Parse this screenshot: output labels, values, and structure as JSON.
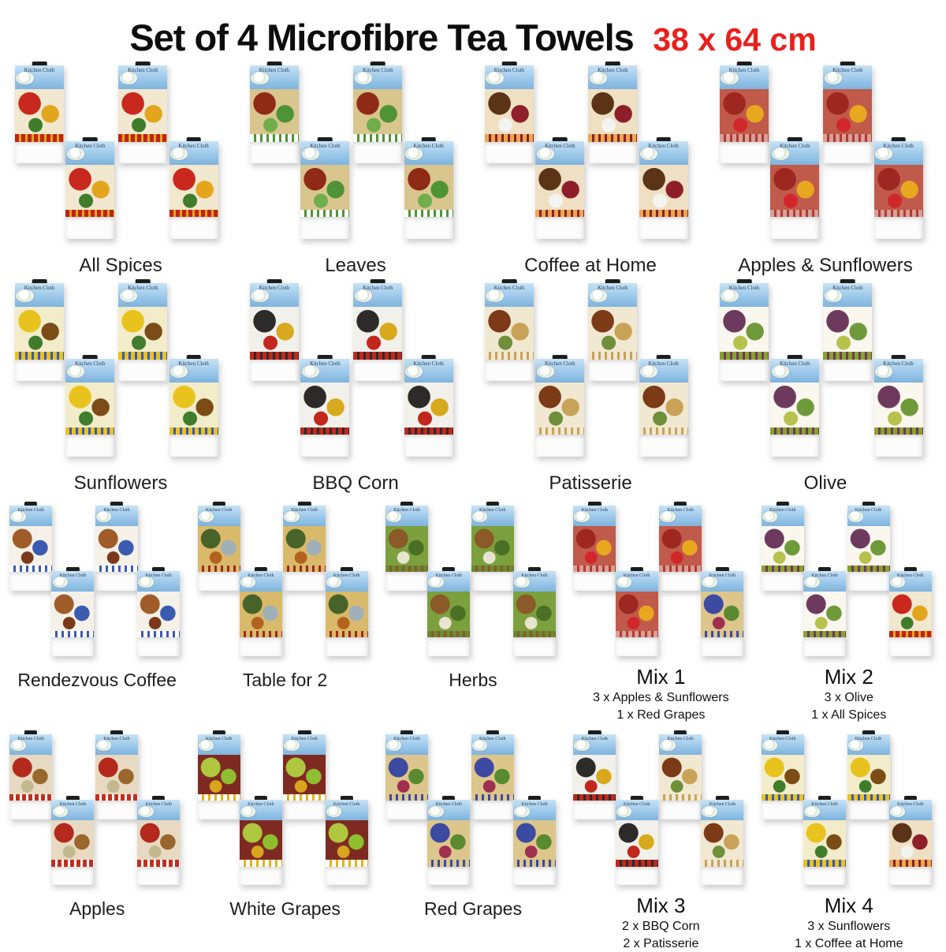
{
  "header": {
    "title": "Set of 4 Microfibre Tea Towels",
    "size": "38 x 64 cm",
    "title_color": "#0d0d0d",
    "size_color": "#e8211d"
  },
  "packaging": {
    "card_label": "Kitchen Cloth",
    "card_bg": "#9dc9ea",
    "tab_color": "#1f1d1b"
  },
  "themes": {
    "all-spices": {
      "base": "#f2e7cf",
      "m1": "#c9281c",
      "m2": "#e2a51c",
      "m3": "#3f7d2c",
      "band": "#bf2418",
      "band2": "#e2a51c"
    },
    "leaves": {
      "base": "#d9c58e",
      "m1": "#8f2a16",
      "m2": "#4e9436",
      "m3": "#6fae4a",
      "band": "#ffffff",
      "band2": "#4e9436"
    },
    "coffee-at-home": {
      "base": "#efe0c4",
      "m1": "#5b3317",
      "m2": "#8e1f2a",
      "m3": "#f3f3f0",
      "band": "#eaa84f",
      "band2": "#8e1f2a"
    },
    "apples-sunflowers": {
      "base": "#c05a4a",
      "m1": "#9e2721",
      "m2": "#e7a81f",
      "m3": "#d2272a",
      "band": "#d9a09a",
      "band2": "#b33a30"
    },
    "sunflowers": {
      "base": "#f2ecca",
      "m1": "#e9c31d",
      "m2": "#7c4c16",
      "m3": "#3f7d2c",
      "band": "#e9c31d",
      "band2": "#3a58b5"
    },
    "bbq-corn": {
      "base": "#f2f0ea",
      "m1": "#2d2b29",
      "m2": "#d8a91c",
      "m3": "#c2271c",
      "band": "#c2271c",
      "band2": "#2d2b29"
    },
    "patisserie": {
      "base": "#f1e8d2",
      "m1": "#7c3a17",
      "m2": "#c8a257",
      "m3": "#6f8f3a",
      "band": "#f1e8d2",
      "band2": "#c8a257"
    },
    "olive": {
      "base": "#faf7ee",
      "m1": "#6d3a5e",
      "m2": "#6f9a39",
      "m3": "#b7c24c",
      "band": "#8aa22b",
      "band2": "#6d3a5e"
    },
    "rendezvous-coffee": {
      "base": "#f5f1e8",
      "m1": "#a05c28",
      "m2": "#3b5bb0",
      "m3": "#7a3a1a",
      "band": "#ffffff",
      "band2": "#3b5bb0"
    },
    "table-for-2": {
      "base": "#d9b96a",
      "m1": "#47632a",
      "m2": "#9fb0b8",
      "m3": "#b4631f",
      "band": "#d9b96a",
      "band2": "#9c2a1e"
    },
    "herbs": {
      "base": "#7ba03d",
      "m1": "#8a5a28",
      "m2": "#4a7026",
      "m3": "#e8e4d0",
      "band": "#6b8a34",
      "band2": "#8a5a28"
    },
    "apples": {
      "base": "#e8d9c2",
      "m1": "#b3291c",
      "m2": "#99662c",
      "m3": "#c2b98f",
      "band": "#c1301f",
      "band2": "#ffffff"
    },
    "white-grapes": {
      "base": "#7e2a22",
      "m1": "#aec73e",
      "m2": "#8fbf2e",
      "m3": "#d9a51c",
      "band": "#ffffff",
      "band2": "#e2b31c"
    },
    "red-grapes": {
      "base": "#ddc68c",
      "m1": "#3c4aa2",
      "m2": "#5a8a30",
      "m3": "#a03050",
      "band": "#ddc68c",
      "band2": "#3c4aa2"
    }
  },
  "rows": [
    {
      "columns": 4,
      "groups": [
        {
          "label": "All Spices",
          "towels": [
            "all-spices",
            "all-spices",
            "all-spices",
            "all-spices"
          ]
        },
        {
          "label": "Leaves",
          "towels": [
            "leaves",
            "leaves",
            "leaves",
            "leaves"
          ]
        },
        {
          "label": "Coffee at Home",
          "towels": [
            "coffee-at-home",
            "coffee-at-home",
            "coffee-at-home",
            "coffee-at-home"
          ]
        },
        {
          "label": "Apples & Sunflowers",
          "towels": [
            "apples-sunflowers",
            "apples-sunflowers",
            "apples-sunflowers",
            "apples-sunflowers"
          ]
        }
      ]
    },
    {
      "columns": 4,
      "groups": [
        {
          "label": "Sunflowers",
          "towels": [
            "sunflowers",
            "sunflowers",
            "sunflowers",
            "sunflowers"
          ]
        },
        {
          "label": "BBQ Corn",
          "towels": [
            "bbq-corn",
            "bbq-corn",
            "bbq-corn",
            "bbq-corn"
          ]
        },
        {
          "label": "Patisserie",
          "towels": [
            "patisserie",
            "patisserie",
            "patisserie",
            "patisserie"
          ]
        },
        {
          "label": "Olive",
          "towels": [
            "olive",
            "olive",
            "olive",
            "olive"
          ]
        }
      ]
    },
    {
      "columns": 5,
      "groups": [
        {
          "label": "Rendezvous Coffee",
          "towels": [
            "rendezvous-coffee",
            "rendezvous-coffee",
            "rendezvous-coffee",
            "rendezvous-coffee"
          ]
        },
        {
          "label": "Table for 2",
          "towels": [
            "table-for-2",
            "table-for-2",
            "table-for-2",
            "table-for-2"
          ]
        },
        {
          "label": "Herbs",
          "towels": [
            "herbs",
            "herbs",
            "herbs",
            "herbs"
          ]
        },
        {
          "label": "Mix 1",
          "sublabels": [
            "3 x Apples & Sunflowers",
            "1 x Red Grapes"
          ],
          "towels": [
            "apples-sunflowers",
            "apples-sunflowers",
            "apples-sunflowers",
            "red-grapes"
          ]
        },
        {
          "label": "Mix 2",
          "sublabels": [
            "3 x Olive",
            "1 x All Spices"
          ],
          "towels": [
            "olive",
            "olive",
            "olive",
            "all-spices"
          ]
        }
      ]
    },
    {
      "columns": 5,
      "groups": [
        {
          "label": "Apples",
          "towels": [
            "apples",
            "apples",
            "apples",
            "apples"
          ]
        },
        {
          "label": "White Grapes",
          "towels": [
            "white-grapes",
            "white-grapes",
            "white-grapes",
            "white-grapes"
          ]
        },
        {
          "label": "Red Grapes",
          "towels": [
            "red-grapes",
            "red-grapes",
            "red-grapes",
            "red-grapes"
          ]
        },
        {
          "label": "Mix 3",
          "sublabels": [
            "2 x BBQ Corn",
            "2 x Patisserie"
          ],
          "towels": [
            "bbq-corn",
            "patisserie",
            "bbq-corn",
            "patisserie"
          ]
        },
        {
          "label": "Mix 4",
          "sublabels": [
            "3 x Sunflowers",
            "1 x Coffee at Home"
          ],
          "towels": [
            "sunflowers",
            "sunflowers",
            "sunflowers",
            "coffee-at-home"
          ]
        }
      ]
    }
  ]
}
